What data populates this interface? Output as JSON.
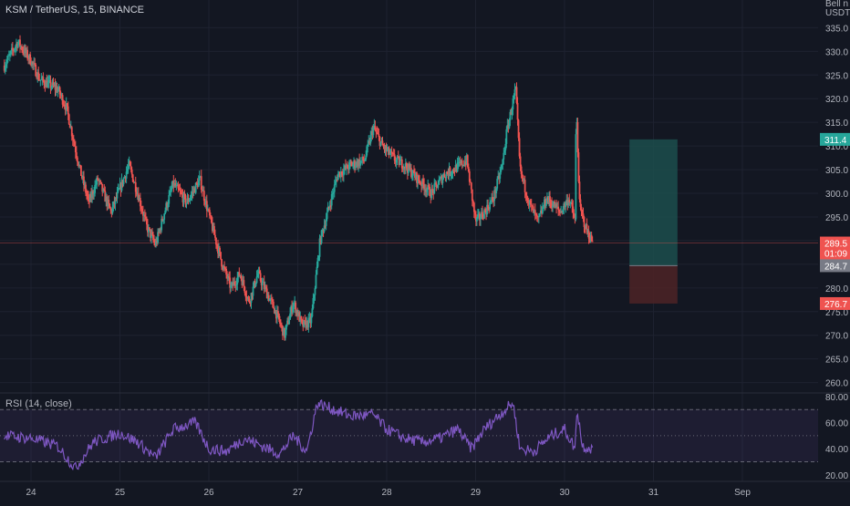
{
  "header": {
    "symbol_line": "KSM / TetherUS, 15, BINANCE"
  },
  "price_axis": {
    "unit_lines": [
      "Bell n",
      "USDT"
    ],
    "ticks": [
      "335.0",
      "330.0",
      "325.0",
      "320.0",
      "315.0",
      "310.0",
      "305.0",
      "300.0",
      "295.0",
      "290.0",
      "285.0",
      "280.0",
      "275.0",
      "270.0",
      "265.0",
      "260.0"
    ]
  },
  "badges": {
    "target": "311.4",
    "last_price": "289.5",
    "countdown": "01:09",
    "entry": "284.7",
    "stop": "276.7"
  },
  "rsi": {
    "label": "RSI (14, close)",
    "ticks": [
      "80.00",
      "60.00",
      "40.00",
      "20.00"
    ]
  },
  "time_axis": {
    "ticks": [
      "24",
      "25",
      "26",
      "27",
      "28",
      "29",
      "30",
      "31",
      "Sep"
    ]
  },
  "colors": {
    "background": "#131722",
    "up": "#26a69a",
    "down": "#ef5350",
    "rsi_line": "#7e57c2",
    "target_zone": "#1c4e4c",
    "stop_zone": "#4a2226"
  },
  "chart_data": {
    "type": "candlestick",
    "symbol": "KSM / TetherUS",
    "interval": "15",
    "exchange": "BINANCE",
    "price_ylim": [
      258,
      337
    ],
    "price_path": [
      {
        "date": "23.7",
        "price": 327
      },
      {
        "date": "23.85",
        "price": 332
      },
      {
        "date": "24.0",
        "price": 328
      },
      {
        "date": "24.1",
        "price": 324
      },
      {
        "date": "24.2",
        "price": 323
      },
      {
        "date": "24.3",
        "price": 322
      },
      {
        "date": "24.4",
        "price": 318
      },
      {
        "date": "24.55",
        "price": 305
      },
      {
        "date": "24.65",
        "price": 298
      },
      {
        "date": "24.75",
        "price": 303
      },
      {
        "date": "24.9",
        "price": 296
      },
      {
        "date": "25.0",
        "price": 301
      },
      {
        "date": "25.1",
        "price": 306
      },
      {
        "date": "25.2",
        "price": 300
      },
      {
        "date": "25.3",
        "price": 293
      },
      {
        "date": "25.4",
        "price": 289
      },
      {
        "date": "25.5",
        "price": 296
      },
      {
        "date": "25.6",
        "price": 302
      },
      {
        "date": "25.75",
        "price": 298
      },
      {
        "date": "25.9",
        "price": 303
      },
      {
        "date": "25.95",
        "price": 299
      },
      {
        "date": "26.05",
        "price": 292
      },
      {
        "date": "26.15",
        "price": 285
      },
      {
        "date": "26.25",
        "price": 280
      },
      {
        "date": "26.35",
        "price": 283
      },
      {
        "date": "26.45",
        "price": 277
      },
      {
        "date": "26.55",
        "price": 283
      },
      {
        "date": "26.65",
        "price": 279
      },
      {
        "date": "26.75",
        "price": 275
      },
      {
        "date": "26.85",
        "price": 270
      },
      {
        "date": "26.95",
        "price": 277
      },
      {
        "date": "27.05",
        "price": 272
      },
      {
        "date": "27.15",
        "price": 273
      },
      {
        "date": "27.25",
        "price": 290
      },
      {
        "date": "27.35",
        "price": 297
      },
      {
        "date": "27.45",
        "price": 304
      },
      {
        "date": "27.6",
        "price": 306
      },
      {
        "date": "27.75",
        "price": 307
      },
      {
        "date": "27.85",
        "price": 314
      },
      {
        "date": "27.95",
        "price": 310
      },
      {
        "date": "28.1",
        "price": 307
      },
      {
        "date": "28.2",
        "price": 306
      },
      {
        "date": "28.35",
        "price": 303
      },
      {
        "date": "28.5",
        "price": 300
      },
      {
        "date": "28.65",
        "price": 304
      },
      {
        "date": "28.75",
        "price": 305
      },
      {
        "date": "28.9",
        "price": 307
      },
      {
        "date": "29.0",
        "price": 294
      },
      {
        "date": "29.1",
        "price": 296
      },
      {
        "date": "29.2",
        "price": 299
      },
      {
        "date": "29.3",
        "price": 306
      },
      {
        "date": "29.35",
        "price": 313
      },
      {
        "date": "29.45",
        "price": 322
      },
      {
        "date": "29.5",
        "price": 305
      },
      {
        "date": "29.6",
        "price": 298
      },
      {
        "date": "29.7",
        "price": 294
      },
      {
        "date": "29.8",
        "price": 299
      },
      {
        "date": "29.95",
        "price": 296
      },
      {
        "date": "30.05",
        "price": 299
      },
      {
        "date": "30.12",
        "price": 294
      },
      {
        "date": "30.13",
        "price": 319
      },
      {
        "date": "30.17",
        "price": 297
      },
      {
        "date": "30.25",
        "price": 292
      },
      {
        "date": "30.32",
        "price": 289.5
      }
    ],
    "position": {
      "target": 311.4,
      "entry": 284.7,
      "stop": 276.7,
      "last": 289.5
    },
    "rsi_ylim": [
      15,
      82
    ],
    "rsi_levels": [
      70,
      50,
      30
    ],
    "rsi_path": [
      {
        "date": "23.7",
        "value": 50
      },
      {
        "date": "24.0",
        "value": 48
      },
      {
        "date": "24.3",
        "value": 42
      },
      {
        "date": "24.5",
        "value": 25
      },
      {
        "date": "24.7",
        "value": 45
      },
      {
        "date": "25.0",
        "value": 52
      },
      {
        "date": "25.2",
        "value": 45
      },
      {
        "date": "25.4",
        "value": 33
      },
      {
        "date": "25.6",
        "value": 55
      },
      {
        "date": "25.85",
        "value": 60
      },
      {
        "date": "26.0",
        "value": 40
      },
      {
        "date": "26.2",
        "value": 38
      },
      {
        "date": "26.4",
        "value": 48
      },
      {
        "date": "26.6",
        "value": 42
      },
      {
        "date": "26.8",
        "value": 36
      },
      {
        "date": "26.95",
        "value": 50
      },
      {
        "date": "27.1",
        "value": 38
      },
      {
        "date": "27.22",
        "value": 75
      },
      {
        "date": "27.4",
        "value": 70
      },
      {
        "date": "27.6",
        "value": 65
      },
      {
        "date": "27.85",
        "value": 66
      },
      {
        "date": "28.0",
        "value": 55
      },
      {
        "date": "28.2",
        "value": 48
      },
      {
        "date": "28.4",
        "value": 45
      },
      {
        "date": "28.6",
        "value": 48
      },
      {
        "date": "28.8",
        "value": 55
      },
      {
        "date": "28.95",
        "value": 40
      },
      {
        "date": "29.1",
        "value": 55
      },
      {
        "date": "29.3",
        "value": 68
      },
      {
        "date": "29.42",
        "value": 75
      },
      {
        "date": "29.5",
        "value": 40
      },
      {
        "date": "29.65",
        "value": 38
      },
      {
        "date": "29.85",
        "value": 50
      },
      {
        "date": "30.0",
        "value": 55
      },
      {
        "date": "30.12",
        "value": 40
      },
      {
        "date": "30.14",
        "value": 72
      },
      {
        "date": "30.2",
        "value": 42
      },
      {
        "date": "30.32",
        "value": 40
      }
    ],
    "rsi_ticks": [
      80,
      60,
      40,
      20
    ]
  }
}
